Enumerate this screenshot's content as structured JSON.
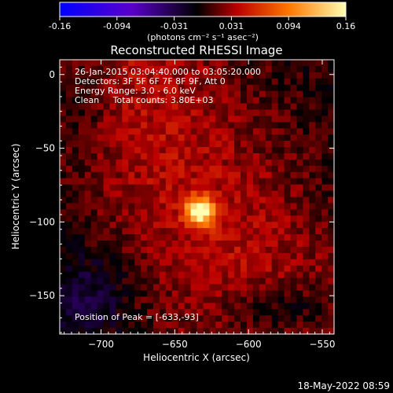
{
  "chart_data": {
    "type": "heatmap",
    "title": "Reconstructed RHESSI Image",
    "xlabel": "Heliocentric X (arcsec)",
    "ylabel": "Heliocentric Y (arcsec)",
    "xlim": [
      -728,
      -542
    ],
    "ylim": [
      -176,
      10
    ],
    "xticks": [
      -700,
      -650,
      -600,
      -550
    ],
    "yticks": [
      0,
      -50,
      -100,
      -150
    ],
    "colorbar": {
      "min": -0.16,
      "max": 0.16,
      "ticks": [
        "-0.16",
        "-0.094",
        "-0.031",
        "0.031",
        "0.094",
        "0.16"
      ],
      "units": "(photons cm⁻² s⁻¹ asec⁻²)",
      "colors": [
        "#0000ff",
        "#6600cc",
        "#000000",
        "#cc0000",
        "#ff8800",
        "#ffffaa"
      ]
    },
    "annotations": [
      "26-Jan-2015 03:04:40.000 to 03:05:20.000",
      "Detectors: 3F 5F 6F 7F 8F 9F, Att 0",
      "Energy Range: 3.0 - 6.0 keV",
      "Clean     Total counts: 3.80E+03"
    ],
    "peak_label": "Position of Peak = [-633,-93]",
    "peak": [
      -633,
      -93
    ],
    "grid": false
  },
  "timestamp": "18-May-2022 08:59"
}
